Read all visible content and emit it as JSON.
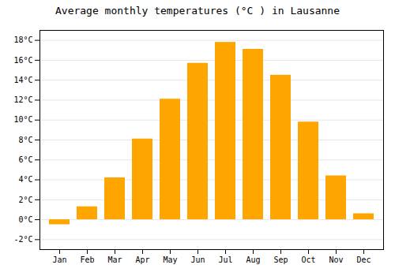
{
  "chart_data": {
    "type": "bar",
    "title": "Average monthly temperatures (°C ) in Lausanne",
    "categories": [
      "Jan",
      "Feb",
      "Mar",
      "Apr",
      "May",
      "Jun",
      "Jul",
      "Aug",
      "Sep",
      "Oct",
      "Nov",
      "Dec"
    ],
    "values": [
      -0.5,
      1.3,
      4.2,
      8.1,
      12.1,
      15.7,
      17.8,
      17.1,
      14.5,
      9.8,
      4.4,
      0.6
    ],
    "color": "#FFA500",
    "ylim": [
      -3,
      19
    ],
    "yticks": [
      {
        "value": -2,
        "label": "-2°C"
      },
      {
        "value": 0,
        "label": "0°C"
      },
      {
        "value": 2,
        "label": "2°C"
      },
      {
        "value": 4,
        "label": "4°C"
      },
      {
        "value": 6,
        "label": "6°C"
      },
      {
        "value": 8,
        "label": "8°C"
      },
      {
        "value": 10,
        "label": "10°C"
      },
      {
        "value": 12,
        "label": "12°C"
      },
      {
        "value": 14,
        "label": "14°C"
      },
      {
        "value": 16,
        "label": "16°C"
      },
      {
        "value": 18,
        "label": "18°C"
      }
    ],
    "grid": true
  }
}
